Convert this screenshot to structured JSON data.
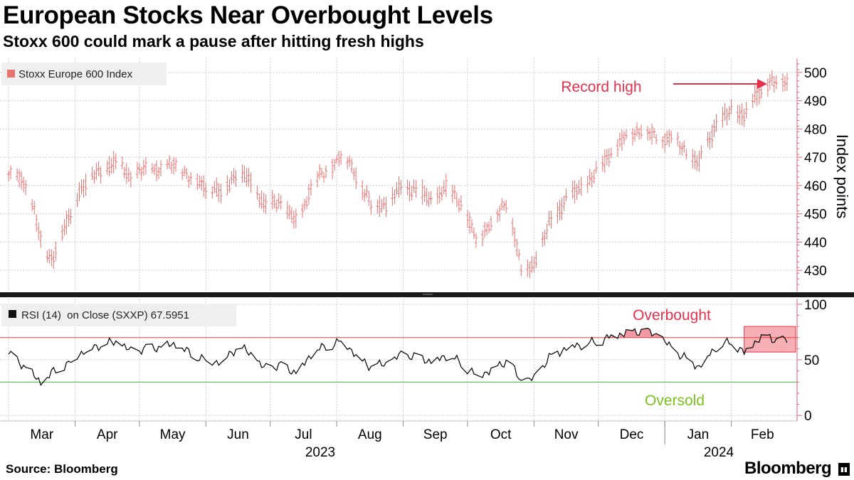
{
  "title": "European Stocks Near Overbought Levels",
  "subtitle": "Stoxx 600 could mark a pause after hitting fresh highs",
  "source": "Source: Bloomberg",
  "brand": "Bloomberg",
  "colors": {
    "price": "#e8706f",
    "annotation": "#e8304d",
    "overbought_line": "#e04040",
    "oversold_line": "#2fbf2f",
    "oversold_text": "#7ac21b",
    "rsi_line": "#000000",
    "highlight_fill": "#f5a1a8",
    "grid": "#cccccc",
    "axis": "#e06070"
  },
  "chart_data": [
    {
      "type": "line",
      "name": "price-panel",
      "legend": "Stoxx Europe 600 Index",
      "ylabel": "Index points",
      "ylim": [
        423,
        505
      ],
      "yticks": [
        430,
        440,
        450,
        460,
        470,
        480,
        490,
        500
      ],
      "annotation": "Record high",
      "x_months": [
        "Mar",
        "Apr",
        "May",
        "Jun",
        "Jul",
        "Aug",
        "Sep",
        "Oct",
        "Nov",
        "Dec",
        "Jan",
        "Feb"
      ],
      "x_years": [
        "2023",
        "2024"
      ],
      "series": [
        {
          "name": "Stoxx Europe 600 Index",
          "dates": [
            "2023-03-01",
            "2023-03-08",
            "2023-03-13",
            "2023-03-17",
            "2023-03-21",
            "2023-03-28",
            "2023-04-03",
            "2023-04-12",
            "2023-04-21",
            "2023-04-27",
            "2023-05-04",
            "2023-05-12",
            "2023-05-18",
            "2023-05-25",
            "2023-06-01",
            "2023-06-08",
            "2023-06-16",
            "2023-06-22",
            "2023-06-28",
            "2023-07-06",
            "2023-07-14",
            "2023-07-21",
            "2023-07-28",
            "2023-08-04",
            "2023-08-11",
            "2023-08-17",
            "2023-08-24",
            "2023-08-31",
            "2023-09-08",
            "2023-09-15",
            "2023-09-22",
            "2023-09-29",
            "2023-10-05",
            "2023-10-11",
            "2023-10-20",
            "2023-10-26",
            "2023-11-01",
            "2023-11-08",
            "2023-11-16",
            "2023-11-23",
            "2023-12-01",
            "2023-12-08",
            "2023-12-15",
            "2023-12-21",
            "2023-12-29",
            "2024-01-05",
            "2024-01-12",
            "2024-01-17",
            "2024-01-25",
            "2024-02-01",
            "2024-02-07",
            "2024-02-13",
            "2024-02-19",
            "2024-02-23",
            "2024-02-27"
          ],
          "values": [
            464,
            462,
            451,
            437,
            434,
            446,
            458,
            465,
            468,
            463,
            466,
            466,
            468,
            462,
            460,
            457,
            465,
            461,
            453,
            454,
            446,
            462,
            465,
            472,
            462,
            453,
            453,
            459,
            458,
            454,
            460,
            452,
            441,
            446,
            455,
            430,
            432,
            446,
            455,
            459,
            465,
            473,
            478,
            480,
            477,
            477,
            471,
            468,
            482,
            486,
            485,
            492,
            497,
            496,
            497
          ]
        }
      ]
    },
    {
      "type": "line",
      "name": "rsi-panel",
      "legend": "RSI (14)  on Close (SXXP) 67.5951",
      "ylim": [
        -5,
        105
      ],
      "yticks": [
        0,
        50,
        100
      ],
      "overbought_level": 70,
      "oversold_level": 30,
      "overbought_label": "Overbought",
      "oversold_label": "Oversold",
      "series": [
        {
          "name": "RSI (14)",
          "dates": [
            "2023-03-01",
            "2023-03-08",
            "2023-03-13",
            "2023-03-17",
            "2023-03-21",
            "2023-03-28",
            "2023-04-03",
            "2023-04-12",
            "2023-04-21",
            "2023-04-27",
            "2023-05-04",
            "2023-05-12",
            "2023-05-18",
            "2023-05-25",
            "2023-06-01",
            "2023-06-08",
            "2023-06-16",
            "2023-06-22",
            "2023-06-28",
            "2023-07-06",
            "2023-07-14",
            "2023-07-21",
            "2023-07-28",
            "2023-08-04",
            "2023-08-11",
            "2023-08-17",
            "2023-08-24",
            "2023-08-31",
            "2023-09-08",
            "2023-09-15",
            "2023-09-22",
            "2023-09-29",
            "2023-10-05",
            "2023-10-11",
            "2023-10-20",
            "2023-10-26",
            "2023-11-01",
            "2023-11-08",
            "2023-11-16",
            "2023-11-23",
            "2023-12-01",
            "2023-12-08",
            "2023-12-15",
            "2023-12-21",
            "2023-12-29",
            "2024-01-05",
            "2024-01-12",
            "2024-01-17",
            "2024-01-25",
            "2024-02-01",
            "2024-02-07",
            "2024-02-13",
            "2024-02-19",
            "2024-02-23",
            "2024-02-27"
          ],
          "values": [
            55,
            45,
            35,
            28,
            38,
            45,
            56,
            63,
            66,
            57,
            60,
            62,
            64,
            55,
            50,
            48,
            62,
            55,
            42,
            45,
            38,
            58,
            62,
            68,
            52,
            44,
            46,
            54,
            53,
            48,
            55,
            45,
            36,
            40,
            50,
            30,
            33,
            52,
            61,
            64,
            66,
            72,
            75,
            76,
            72,
            58,
            50,
            44,
            62,
            66,
            56,
            68,
            71,
            66,
            67.6
          ]
        }
      ]
    }
  ]
}
